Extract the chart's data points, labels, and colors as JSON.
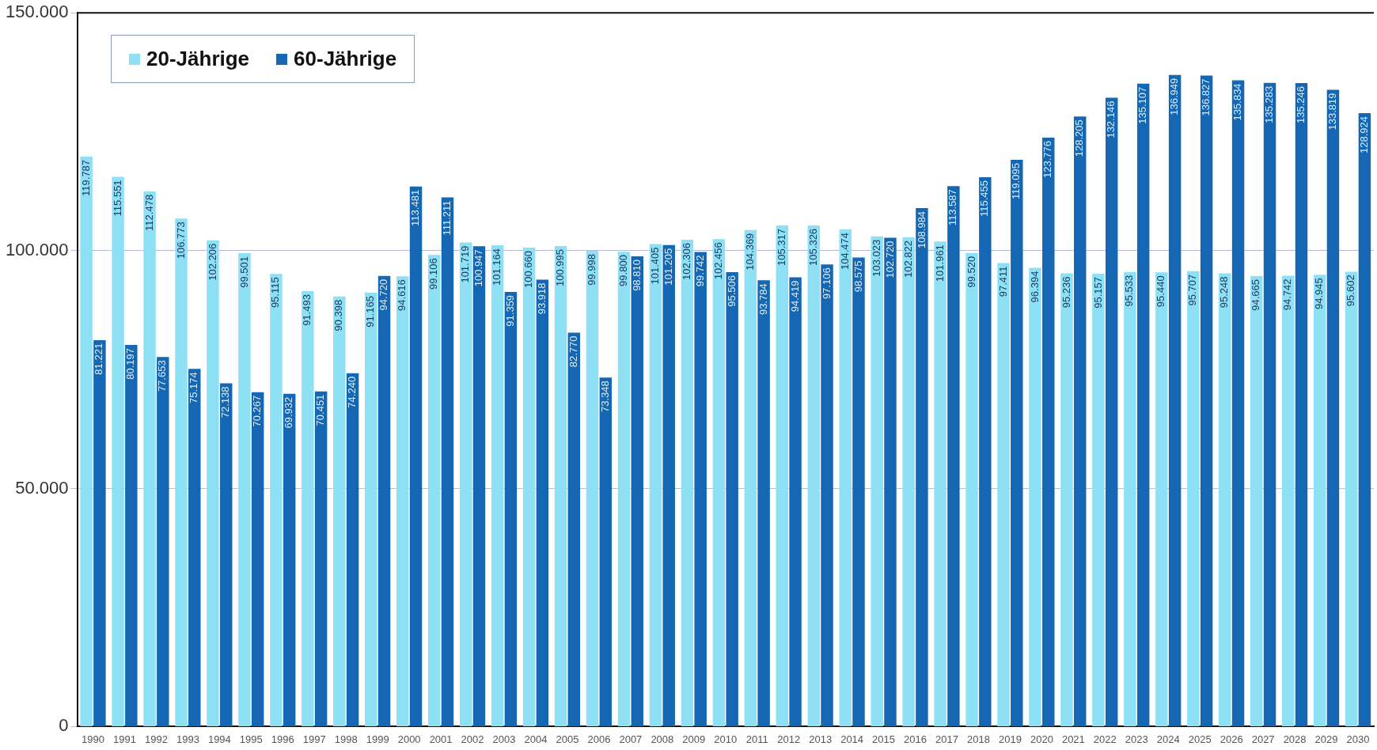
{
  "chart_data": {
    "type": "bar",
    "categories": [
      "1990",
      "1991",
      "1992",
      "1993",
      "1994",
      "1995",
      "1996",
      "1997",
      "1998",
      "1999",
      "2000",
      "2001",
      "2002",
      "2003",
      "2004",
      "2005",
      "2006",
      "2007",
      "2008",
      "2009",
      "2010",
      "2011",
      "2012",
      "2013",
      "2014",
      "2015",
      "2016",
      "2017",
      "2018",
      "2019",
      "2020",
      "2021",
      "2022",
      "2023",
      "2024",
      "2025",
      "2026",
      "2027",
      "2028",
      "2029",
      "2030"
    ],
    "series": [
      {
        "name": "20-Jährige",
        "color": "#8ee0f4",
        "values": [
          119787,
          115551,
          112478,
          106773,
          102206,
          99501,
          95115,
          91493,
          90398,
          91165,
          94616,
          99106,
          101719,
          101164,
          100660,
          100995,
          99998,
          99800,
          101405,
          102306,
          102456,
          104369,
          105317,
          105326,
          104474,
          103023,
          102822,
          101961,
          99520,
          97411,
          96394,
          95236,
          95157,
          95533,
          95440,
          95707,
          95248,
          94665,
          94742,
          94945,
          95602
        ],
        "value_labels": [
          "119.787",
          "115.551",
          "112.478",
          "106.773",
          "102.206",
          "99.501",
          "95.115",
          "91.493",
          "90.398",
          "91.165",
          "94.616",
          "99.106",
          "101.719",
          "101.164",
          "100.660",
          "100.995",
          "99.998",
          "99.800",
          "101.405",
          "102.306",
          "102.456",
          "104.369",
          "105.317",
          "105.326",
          "104.474",
          "103.023",
          "102.822",
          "101.961",
          "99.520",
          "97.411",
          "96.394",
          "95.236",
          "95.157",
          "95.533",
          "95.440",
          "95.707",
          "95.248",
          "94.665",
          "94.742",
          "94.945",
          "95.602"
        ]
      },
      {
        "name": "60-Jährige",
        "color": "#1567b3",
        "values": [
          81221,
          80197,
          77653,
          75174,
          72138,
          70267,
          69932,
          70451,
          74240,
          94720,
          113481,
          111211,
          100947,
          91359,
          93918,
          82770,
          73348,
          98810,
          101205,
          99742,
          95506,
          93784,
          94419,
          97106,
          98575,
          102720,
          108984,
          113587,
          115455,
          119095,
          123776,
          128205,
          132146,
          135107,
          136949,
          136827,
          135834,
          135283,
          135246,
          133819,
          128924
        ],
        "value_labels": [
          "81.221",
          "80.197",
          "77.653",
          "75.174",
          "72.138",
          "70.267",
          "69.932",
          "70.451",
          "74.240",
          "94.720",
          "113.481",
          "111.211",
          "100.947",
          "91.359",
          "93.918",
          "82.770",
          "73.348",
          "98.810",
          "101.205",
          "99.742",
          "95.506",
          "93.784",
          "94.419",
          "97.106",
          "98.575",
          "102.720",
          "108.984",
          "113.587",
          "115.455",
          "119.095",
          "123.776",
          "128.205",
          "132.146",
          "135.107",
          "136.949",
          "136.827",
          "135.834",
          "135.283",
          "135.246",
          "133.819",
          "128.924"
        ]
      }
    ],
    "ylim": [
      0,
      150000
    ],
    "yticks": [
      {
        "value": 0,
        "label": "0"
      },
      {
        "value": 50000,
        "label": "50.000"
      },
      {
        "value": 100000,
        "label": "100.000"
      },
      {
        "value": 150000,
        "label": "150.000"
      }
    ],
    "grid": "y",
    "legend": "top left"
  }
}
